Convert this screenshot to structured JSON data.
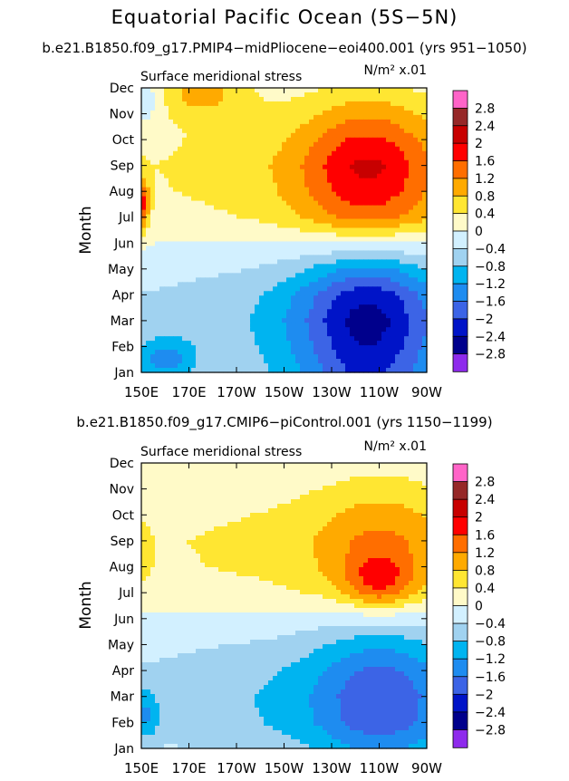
{
  "figure_title": "Equatorial Pacific Ocean (5S−5N)",
  "colors": [
    "#8e2bec",
    "#00008c",
    "#0014c8",
    "#3c64e6",
    "#1e8cf0",
    "#00b4f0",
    "#a0d2f0",
    "#d2f0ff",
    "#fffac8",
    "#ffe632",
    "#ffaa00",
    "#ff6e00",
    "#ff0000",
    "#c80000",
    "#962828",
    "#ff64c8"
  ],
  "chart_data": [
    {
      "type": "heatmap",
      "subtitle": "b.e21.B1850.f09_g17.PMIP4−midPliocene−eoi400.001 (yrs 951−1050)",
      "left_label": "Surface meridional stress",
      "units_label": "N/m² x.01",
      "ylabel": "Month",
      "xlabel": "",
      "xlim": [
        150,
        270
      ],
      "ylim": [
        0,
        11
      ],
      "x_ticks": [
        {
          "value": 150,
          "label": "150E"
        },
        {
          "value": 170,
          "label": "170E"
        },
        {
          "value": 190,
          "label": "170W"
        },
        {
          "value": 210,
          "label": "150W"
        },
        {
          "value": 230,
          "label": "130W"
        },
        {
          "value": 250,
          "label": "110W"
        },
        {
          "value": 270,
          "label": "90W"
        }
      ],
      "y_ticks": [
        "Jan",
        "Feb",
        "Mar",
        "Apr",
        "May",
        "Jun",
        "Jul",
        "Aug",
        "Sep",
        "Oct",
        "Nov",
        "Dec"
      ],
      "colorbar_labels": [
        "2.8",
        "2.4",
        "2",
        "1.6",
        "1.2",
        "0.8",
        "0.4",
        "0",
        "−0.4",
        "−0.8",
        "−1.2",
        "−1.6",
        "−2",
        "−2.4",
        "−2.8"
      ],
      "levels": [
        -2.8,
        -2.4,
        -2,
        -1.6,
        -1.2,
        -0.8,
        -0.4,
        0,
        0.4,
        0.8,
        1.2,
        1.6,
        2,
        2.4,
        2.8
      ],
      "field": [
        {
          "x": 160,
          "y": 0.5,
          "v": -1.0,
          "sx": 12,
          "sy": 0.8
        },
        {
          "x": 150,
          "y": 6.5,
          "v": 1.6,
          "sx": 3,
          "sy": 1.0
        },
        {
          "x": 152,
          "y": 10.5,
          "v": -0.5,
          "sx": 8,
          "sy": 1.0
        },
        {
          "x": 175,
          "y": 10.8,
          "v": 0.8,
          "sx": 20,
          "sy": 1.0
        }
      ],
      "base": {
        "amp_by_month": [
          -2.1,
          -2.4,
          -2.6,
          -2.3,
          -1.3,
          0.0,
          1.4,
          1.9,
          2.1,
          1.7,
          1.1,
          0.5
        ],
        "shape_center_x": 245,
        "shape_width_x": 28,
        "shape_floor": 0.32,
        "ramp_start_x": 150,
        "ramp_full_x": 210
      }
    },
    {
      "type": "heatmap",
      "subtitle": "b.e21.B1850.f09_g17.CMIP6−piControl.001 (yrs 1150−1199)",
      "left_label": "Surface meridional stress",
      "units_label": "N/m² x.01",
      "ylabel": "Month",
      "xlabel": "",
      "xlim": [
        150,
        270
      ],
      "ylim": [
        0,
        11
      ],
      "x_ticks": [
        {
          "value": 150,
          "label": "150E"
        },
        {
          "value": 170,
          "label": "170E"
        },
        {
          "value": 190,
          "label": "170W"
        },
        {
          "value": 210,
          "label": "150W"
        },
        {
          "value": 230,
          "label": "130W"
        },
        {
          "value": 250,
          "label": "110W"
        },
        {
          "value": 270,
          "label": "90W"
        }
      ],
      "y_ticks": [
        "Jan",
        "Feb",
        "Mar",
        "Apr",
        "May",
        "Jun",
        "Jul",
        "Aug",
        "Sep",
        "Oct",
        "Nov",
        "Dec"
      ],
      "colorbar_labels": [
        "2.8",
        "2.4",
        "2",
        "1.6",
        "1.2",
        "0.8",
        "0.4",
        "0",
        "−0.4",
        "−0.8",
        "−1.2",
        "−1.6",
        "−2",
        "−2.4",
        "−2.8"
      ],
      "levels": [
        -2.8,
        -2.4,
        -2,
        -1.6,
        -1.2,
        -0.8,
        -0.4,
        0,
        0.4,
        0.8,
        1.2,
        1.6,
        2,
        2.4,
        2.8
      ],
      "field": [
        {
          "x": 152,
          "y": 1.3,
          "v": -0.8,
          "sx": 5,
          "sy": 1.0
        },
        {
          "x": 250,
          "y": 6.4,
          "v": 0.9,
          "sx": 14,
          "sy": 1.0
        },
        {
          "x": 150,
          "y": 7.5,
          "v": 0.4,
          "sx": 4,
          "sy": 1.2
        }
      ],
      "base": {
        "amp_by_month": [
          -1.3,
          -1.9,
          -2.0,
          -1.7,
          -1.1,
          -0.3,
          0.7,
          1.2,
          1.3,
          1.0,
          0.6,
          0.2
        ],
        "shape_center_x": 250,
        "shape_width_x": 26,
        "shape_floor": 0.45,
        "ramp_start_x": 150,
        "ramp_full_x": 215
      }
    }
  ]
}
